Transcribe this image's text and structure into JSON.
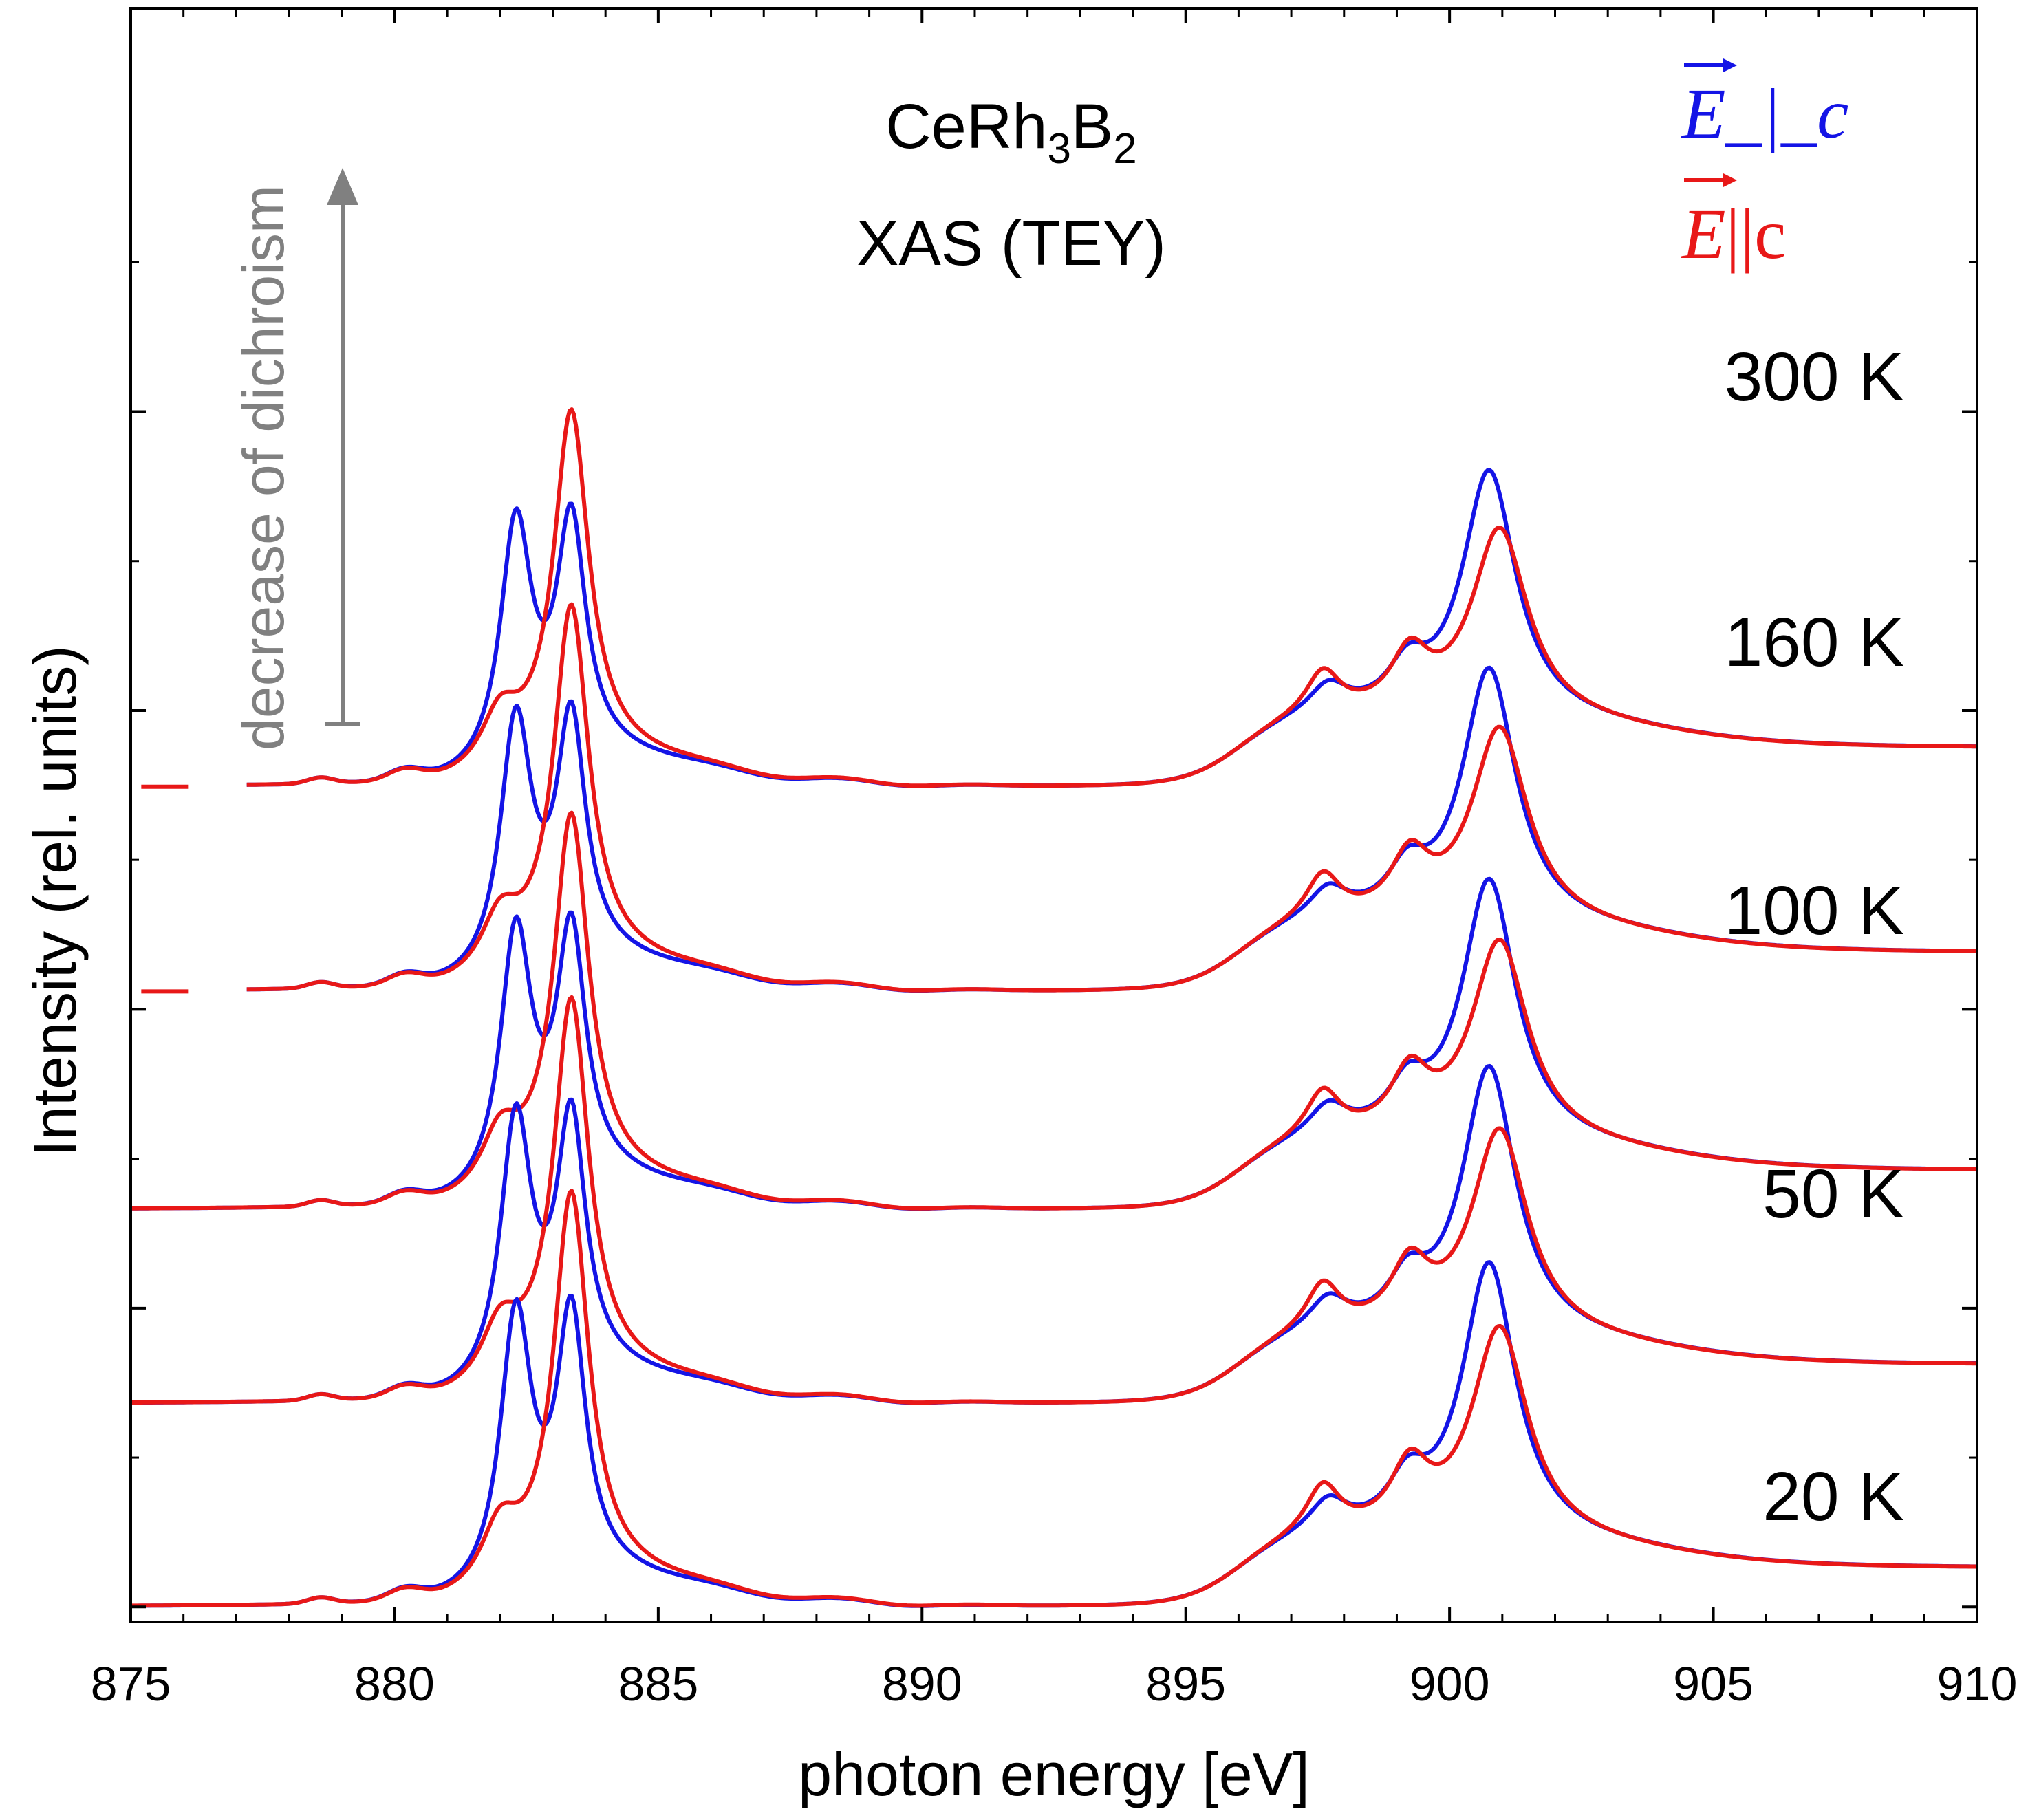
{
  "chart_data": {
    "type": "line",
    "title_line1_base": "CeRh",
    "title_line1_sub1": "3",
    "title_line1_mid": "B",
    "title_line1_sub2": "2",
    "title_line2": "XAS (TEY)",
    "xlabel": "photon energy [eV]",
    "ylabel": "Intensity (rel. units)",
    "xlim": [
      875,
      910
    ],
    "x_ticks": [
      875,
      880,
      885,
      890,
      895,
      900,
      905,
      910
    ],
    "y_ticks": [
      0,
      2,
      4,
      6,
      8
    ],
    "ylim": [
      -0.1,
      10.7
    ],
    "y_tick_labels_shown": false,
    "annotation": "decrease of dichroism",
    "legend": [
      {
        "name": "E perp c",
        "text_main": "E",
        "text_suffix": "_|_c",
        "color": "#1414e6"
      },
      {
        "name": "E parallel c",
        "text_main": "E",
        "text_suffix": "||c",
        "color": "#e81818"
      }
    ],
    "colors": {
      "perp": "#1414e6",
      "para": "#e81818",
      "arrow": "#808080",
      "axis": "#000000"
    },
    "temperatures": [
      {
        "label": "300 K",
        "offset": 5.49,
        "plot_start": 877.2
      },
      {
        "label": "160 K",
        "offset": 4.12,
        "plot_start": 877.2
      },
      {
        "label": "100 K",
        "offset": 2.66,
        "plot_start": 875.0
      },
      {
        "label": "50 K",
        "offset": 1.36,
        "plot_start": 875.0
      },
      {
        "label": "20 K",
        "offset": 0.0,
        "plot_start": 875.0
      }
    ],
    "series_shape": {
      "note": "per-temperature normalized absorption spectra (Ce M5,4 edges), plotted with vertical offsets",
      "perp_peaks_ev": [
        882.3,
        883.3,
        897.7,
        899.3,
        900.8
      ],
      "para_peaks_ev": [
        883.3,
        897.6,
        899.3,
        900.9
      ],
      "peak_heights_perp": {
        "m5_low": 2.05,
        "m5_high": 1.95,
        "m4": 2.2
      },
      "peak_heights_para": {
        "m5": 2.95,
        "m4": 1.74
      }
    }
  }
}
